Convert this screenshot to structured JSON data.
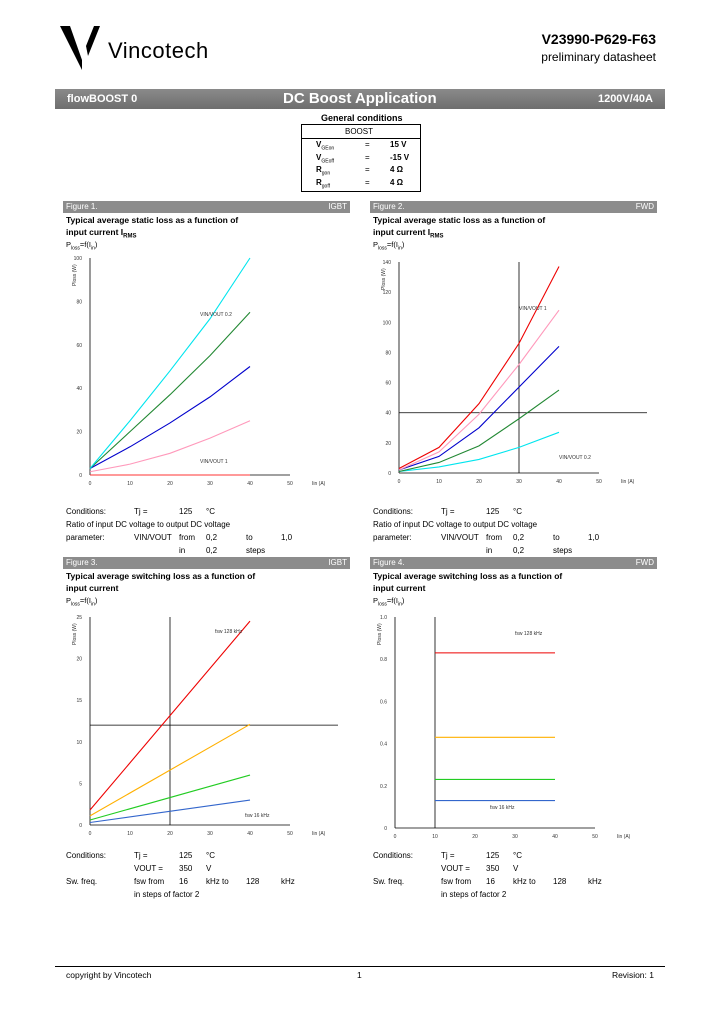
{
  "header": {
    "company": "Vincotech",
    "part_number": "V23990-P629-F63",
    "subtitle": "preliminary datasheet"
  },
  "banner": {
    "left": "flowBOOST 0",
    "center": "DC Boost Application",
    "right": "1200V/40A"
  },
  "general_conditions": {
    "title": "General conditions",
    "section": "BOOST",
    "rows": [
      {
        "sym": "V",
        "sub": "GEon",
        "eq": "=",
        "val": "15 V"
      },
      {
        "sym": "V",
        "sub": "GEoff",
        "eq": "=",
        "val": "-15 V"
      },
      {
        "sym": "R",
        "sub": "gon",
        "eq": "=",
        "val": "4 Ω"
      },
      {
        "sym": "R",
        "sub": "goff",
        "eq": "=",
        "val": "4 Ω"
      }
    ]
  },
  "figures": [
    {
      "label": "Figure 1.",
      "tag": "IGBT",
      "title1": "Typical average static loss as a function of",
      "title2": "input current I",
      "title2_sub": "RMS",
      "func": "P",
      "func_sub": "loss",
      "func_rest": "=f(I",
      "func_sub2": "in",
      "func_end": ")",
      "ylabel": "Ploss (W)",
      "xlabel": "Iin (A)",
      "annot1": "VIN/VOUT 0.2",
      "annot2": "VIN/VOUT 1",
      "cond_rows": [
        [
          "Conditions:",
          "Tj =",
          "125",
          "°C",
          "",
          ""
        ],
        [
          "Ratio of input DC voltage to output DC voltage",
          "",
          "",
          "",
          "",
          ""
        ],
        [
          "parameter:",
          "VIN/VOUT",
          "from",
          "0,2",
          "to",
          "1,0"
        ],
        [
          "",
          "",
          "in",
          "0,2",
          "steps",
          ""
        ]
      ]
    },
    {
      "label": "Figure 2.",
      "tag": "FWD",
      "title1": "Typical average static loss as a function of",
      "title2": "input current I",
      "title2_sub": "RMS",
      "func": "P",
      "func_sub": "loss",
      "func_rest": "=f(I",
      "func_sub2": "in",
      "func_end": ")",
      "ylabel": "Ploss (W)",
      "xlabel": "Iin (A)",
      "annot1": "VIN/VOUT 1",
      "annot2": "VIN/VOUT 0.2",
      "cond_rows": [
        [
          "Conditions:",
          "Tj =",
          "125",
          "°C",
          "",
          ""
        ],
        [
          "Ratio of input DC voltage to output DC voltage",
          "",
          "",
          "",
          "",
          ""
        ],
        [
          "parameter:",
          "VIN/VOUT",
          "from",
          "0,2",
          "to",
          "1,0"
        ],
        [
          "",
          "",
          "in",
          "0,2",
          "steps",
          ""
        ]
      ]
    },
    {
      "label": "Figure 3.",
      "tag": "IGBT",
      "title1": "Typical average switching loss as a function of",
      "title2": "input current",
      "title2_sub": "",
      "func": "P",
      "func_sub": "loss",
      "func_rest": "=f(I",
      "func_sub2": "in",
      "func_end": ")",
      "ylabel": "Ploss (W)",
      "xlabel": "Iin (A)",
      "annot1": "fsw 128 kHz",
      "annot2": "fsw 16 kHz",
      "cond_rows": [
        [
          "Conditions:",
          "Tj =",
          "125",
          "°C",
          "",
          ""
        ],
        [
          "",
          "VOUT =",
          "350",
          "V",
          "",
          ""
        ],
        [
          "Sw. freq.",
          "fsw from",
          "16",
          "kHz to",
          "128",
          "kHz"
        ],
        [
          "",
          "in steps of factor 2",
          "",
          "",
          "",
          ""
        ]
      ]
    },
    {
      "label": "Figure 4.",
      "tag": "FWD",
      "title1": "Typical average switching loss as a function of",
      "title2": "input current",
      "title2_sub": "",
      "func": "P",
      "func_sub": "loss",
      "func_rest": "=f(I",
      "func_sub2": "in",
      "func_end": ")",
      "ylabel": "Ploss (W)",
      "xlabel": "Iin (A)",
      "annot1": "fsw 128 kHz",
      "annot2": "fsw 16 kHz",
      "cond_rows": [
        [
          "Conditions:",
          "Tj =",
          "125",
          "°C",
          "",
          ""
        ],
        [
          "",
          "VOUT =",
          "350",
          "V",
          "",
          ""
        ],
        [
          "Sw. freq.",
          "fsw from",
          "16",
          "kHz to",
          "128",
          "kHz"
        ],
        [
          "",
          "in steps of factor 2",
          "",
          "",
          "",
          ""
        ]
      ]
    }
  ],
  "chart_data": [
    {
      "type": "line",
      "xlim": [
        0,
        50
      ],
      "ylim": [
        0,
        100
      ],
      "xticks": [
        "0",
        "10",
        "20",
        "30",
        "40",
        "50"
      ],
      "yticks": [
        "0",
        "20",
        "40",
        "60",
        "80",
        "100"
      ],
      "crosshair": null,
      "series": [
        {
          "color": "#ff3333",
          "x": [
            0,
            40
          ],
          "y": [
            0,
            0
          ]
        },
        {
          "color": "#ff99bb",
          "x": [
            0,
            10,
            20,
            30,
            40
          ],
          "y": [
            1.5,
            5,
            10,
            17,
            25
          ]
        },
        {
          "color": "#0000cc",
          "x": [
            0,
            10,
            20,
            30,
            40
          ],
          "y": [
            3,
            13,
            24,
            36,
            50
          ]
        },
        {
          "color": "#228833",
          "x": [
            0,
            10,
            20,
            30,
            40
          ],
          "y": [
            3,
            20,
            37,
            55,
            75
          ]
        },
        {
          "color": "#00e5ee",
          "x": [
            0,
            10,
            20,
            30,
            40
          ],
          "y": [
            3,
            25,
            48,
            72,
            100
          ]
        }
      ]
    },
    {
      "type": "line",
      "xlim": [
        0,
        50
      ],
      "ylim": [
        0,
        140
      ],
      "xticks": [
        "0",
        "10",
        "20",
        "30",
        "40",
        "50"
      ],
      "yticks": [
        "0",
        "20",
        "40",
        "60",
        "80",
        "100",
        "120",
        "140"
      ],
      "crosshair": {
        "x": 30,
        "y": 40
      },
      "series": [
        {
          "color": "#00e5ee",
          "x": [
            0,
            10,
            20,
            30,
            40
          ],
          "y": [
            1,
            4,
            9,
            17,
            27
          ]
        },
        {
          "color": "#228833",
          "x": [
            0,
            10,
            20,
            30,
            40
          ],
          "y": [
            1,
            7,
            18,
            36,
            55
          ]
        },
        {
          "color": "#0000cc",
          "x": [
            0,
            10,
            20,
            30,
            40
          ],
          "y": [
            2,
            11,
            30,
            57,
            84
          ]
        },
        {
          "color": "#ff99bb",
          "x": [
            0,
            10,
            20,
            30,
            40
          ],
          "y": [
            2,
            14,
            39,
            72,
            108
          ]
        },
        {
          "color": "#ee0000",
          "x": [
            0,
            10,
            20,
            30,
            40
          ],
          "y": [
            3,
            17,
            46,
            86,
            137
          ]
        }
      ]
    },
    {
      "type": "line",
      "xlim": [
        0,
        50
      ],
      "ylim": [
        0,
        25
      ],
      "xticks": [
        "0",
        "10",
        "20",
        "30",
        "40",
        "50"
      ],
      "yticks": [
        "0",
        "5",
        "10",
        "15",
        "20",
        "25"
      ],
      "crosshair": {
        "x": 20,
        "y": 12
      },
      "series": [
        {
          "color": "#ee0000",
          "x": [
            0,
            40
          ],
          "y": [
            1.8,
            24.5
          ]
        },
        {
          "color": "#ffb000",
          "x": [
            0,
            40
          ],
          "y": [
            1.1,
            12.1
          ]
        },
        {
          "color": "#22cc22",
          "x": [
            0,
            40
          ],
          "y": [
            0.6,
            6
          ]
        },
        {
          "color": "#3366cc",
          "x": [
            0,
            40
          ],
          "y": [
            0.3,
            3
          ]
        }
      ]
    },
    {
      "type": "line",
      "xlim": [
        0,
        50
      ],
      "ylim": [
        0,
        1.0
      ],
      "xticks": [
        "0",
        "10",
        "20",
        "30",
        "40",
        "50"
      ],
      "yticks": [
        "0",
        "0.2",
        "0.4",
        "0.6",
        "0.8",
        "1.0"
      ],
      "crosshair": {
        "x": 10,
        "y": null
      },
      "series": [
        {
          "color": "#ee0000",
          "x": [
            10,
            40
          ],
          "y": [
            0.83,
            0.83
          ]
        },
        {
          "color": "#ffb000",
          "x": [
            10,
            40
          ],
          "y": [
            0.43,
            0.43
          ]
        },
        {
          "color": "#22cc22",
          "x": [
            10,
            40
          ],
          "y": [
            0.23,
            0.23
          ]
        },
        {
          "color": "#3366cc",
          "x": [
            10,
            40
          ],
          "y": [
            0.13,
            0.13
          ]
        }
      ]
    }
  ],
  "footer": {
    "left": "copyright by Vincotech",
    "center": "1",
    "right": "Revision: 1"
  }
}
